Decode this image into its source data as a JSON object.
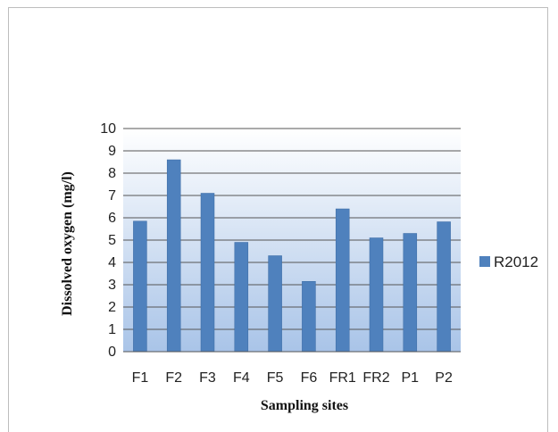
{
  "chart_data": {
    "type": "bar",
    "categories": [
      "F1",
      "F2",
      "F3",
      "F4",
      "F5",
      "F6",
      "FR1",
      "FR2",
      "P1",
      "P2"
    ],
    "series": [
      {
        "name": "R2012",
        "values": [
          5.85,
          8.6,
          7.1,
          4.9,
          4.3,
          3.15,
          6.4,
          5.1,
          5.3,
          5.82
        ]
      }
    ],
    "xlabel": "Sampling sites",
    "ylabel": "Dissolved oxygen (mg/l)",
    "ylim": [
      0,
      10
    ],
    "yticks": [
      "0",
      "1",
      "2",
      "3",
      "4",
      "5",
      "6",
      "7",
      "8",
      "9",
      "10"
    ],
    "grid": true,
    "legend_position": "right",
    "colors": {
      "bar": "#4f81bd",
      "bar_edge": "#3a6aa3",
      "plot_top": "#ffffff",
      "plot_bottom": "#a9c4e8",
      "grid": "#555555"
    }
  }
}
